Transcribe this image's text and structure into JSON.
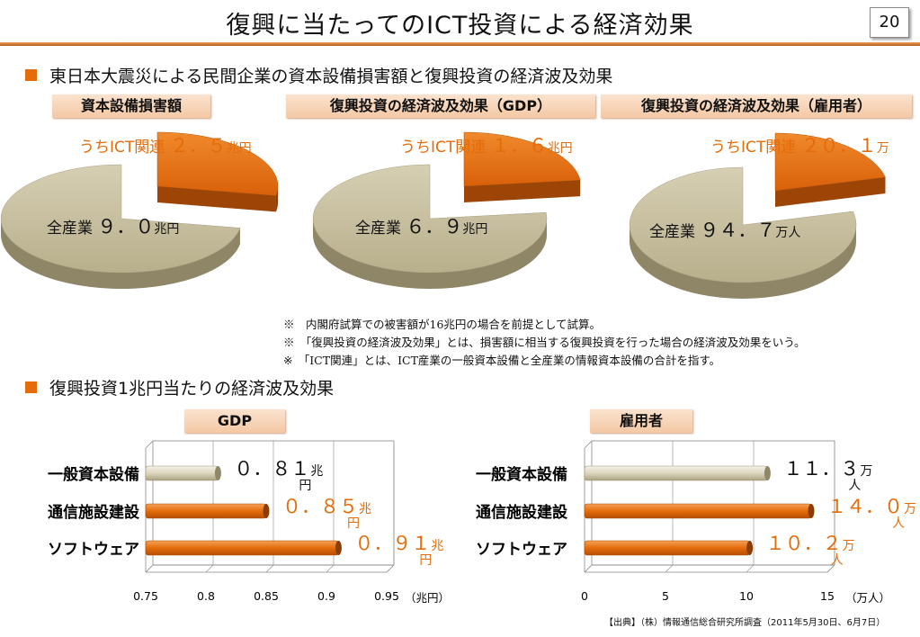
{
  "page": {
    "title": "復興に当たってのICT投資による経済効果",
    "page_number": "20",
    "section1": "東日本大震災による民間企業の資本設備損害額と復興投資の経済波及効果",
    "section2": "復興投資1兆円当たりの経済波及効果",
    "notes": [
      "※　内閣府試算での被害額が16兆円の場合を前提として試算。",
      "※　「復興投資の経済波及効果」とは、損害額に相当する復興投資を行った場合の経済波及効果をいう。",
      "※　「ICT関連」とは、ICT産業の一般資本設備と全産業の情報資本設備の合計を指す。"
    ],
    "source": "【出典】（株）情報通信総合研究所調査（2011年5月30日、6月7日）"
  },
  "colors": {
    "accent": "#e46c0a",
    "beige": "#c6bea0",
    "bar_orange": "#e46c0a",
    "bar_beige": "#e2dcc8"
  },
  "chart_data": [
    {
      "type": "pie",
      "title": "資本設備損害額",
      "slices": [
        {
          "label": "全産業",
          "value_text": "９．０",
          "unit": "兆円",
          "value": 9.0
        },
        {
          "label": "うちICT関連",
          "value_text": "２．５",
          "unit": "兆円",
          "value": 2.5
        }
      ]
    },
    {
      "type": "pie",
      "title": "復興投資の経済波及効果（GDP）",
      "slices": [
        {
          "label": "全産業",
          "value_text": "６．９",
          "unit": "兆円",
          "value": 6.9
        },
        {
          "label": "うちICT関連",
          "value_text": "１．６",
          "unit": "兆円",
          "value": 1.6
        }
      ]
    },
    {
      "type": "pie",
      "title": "復興投資の経済波及効果（雇用者）",
      "slices": [
        {
          "label": "全産業",
          "value_text": "９４．７",
          "unit": "万人",
          "value": 94.7
        },
        {
          "label": "うちICT関連",
          "value_text": "２０．１",
          "unit": "万",
          "value": 20.1
        }
      ]
    },
    {
      "type": "bar",
      "title": "GDP",
      "xlabel": "（兆円）",
      "xlim": [
        0.75,
        0.95
      ],
      "ticks": [
        "0.75",
        "0.8",
        "0.85",
        "0.9",
        "0.95"
      ],
      "categories": [
        "一般資本設備",
        "通信施設建設",
        "ソフトウェア"
      ],
      "values": [
        0.81,
        0.85,
        0.91
      ],
      "value_texts": [
        "０．８１",
        "０．８５",
        "０．９１"
      ],
      "unit": "兆円"
    },
    {
      "type": "bar",
      "title": "雇用者",
      "xlabel": "（万人）",
      "xlim": [
        0,
        15
      ],
      "ticks": [
        "0",
        "5",
        "10",
        "15"
      ],
      "categories": [
        "一般資本設備",
        "通信施設建設",
        "ソフトウェア"
      ],
      "values": [
        11.3,
        14.0,
        10.2
      ],
      "value_texts": [
        "１１．３",
        "１４．０",
        "１０．２"
      ],
      "unit": "万人"
    }
  ]
}
